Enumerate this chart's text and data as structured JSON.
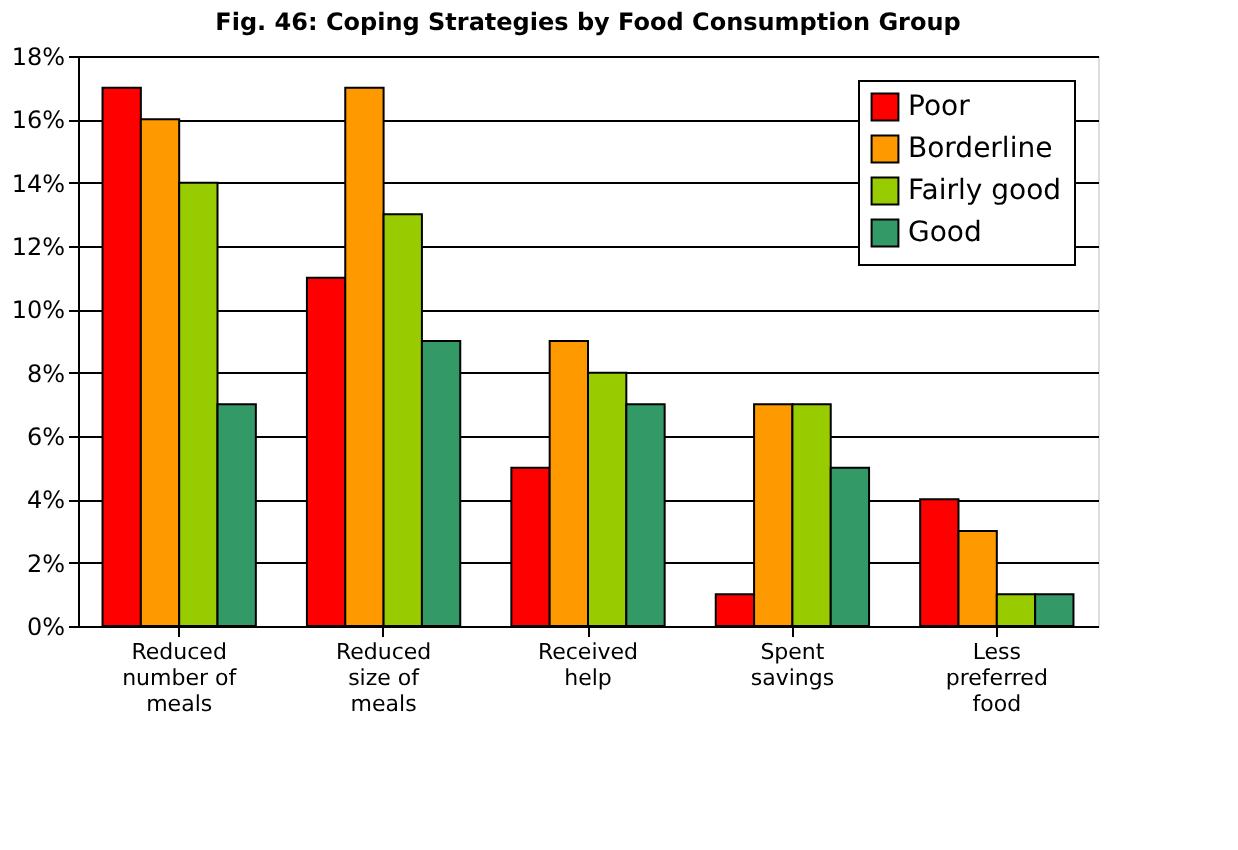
{
  "chart_data": {
    "type": "bar",
    "title": "Fig. 46: Coping Strategies by Food Consumption Group",
    "categories": [
      "Reduced number of meals",
      "Reduced size of meals",
      "Received help",
      "Spent savings",
      "Less preferred food"
    ],
    "series": [
      {
        "name": "Poor",
        "color": "#ff0000",
        "values": [
          17,
          11,
          5,
          1,
          4
        ]
      },
      {
        "name": "Borderline",
        "color": "#ff9900",
        "values": [
          16,
          17,
          9,
          7,
          3
        ]
      },
      {
        "name": "Fairly good",
        "color": "#99cc00",
        "values": [
          14,
          13,
          8,
          7,
          1
        ]
      },
      {
        "name": "Good",
        "color": "#339966",
        "values": [
          7,
          9,
          7,
          5,
          1
        ]
      }
    ],
    "ylim": [
      0,
      18
    ],
    "yticks": [
      {
        "value": 0,
        "label": "0%"
      },
      {
        "value": 2,
        "label": "2%"
      },
      {
        "value": 4,
        "label": "4%"
      },
      {
        "value": 6,
        "label": "6%"
      },
      {
        "value": 8,
        "label": "8%"
      },
      {
        "value": 10,
        "label": "10%"
      },
      {
        "value": 12,
        "label": "12%"
      },
      {
        "value": 14,
        "label": "14%"
      },
      {
        "value": 16,
        "label": "16%"
      },
      {
        "value": 18,
        "label": "18%"
      }
    ],
    "grid": "y",
    "legend": "top right"
  }
}
